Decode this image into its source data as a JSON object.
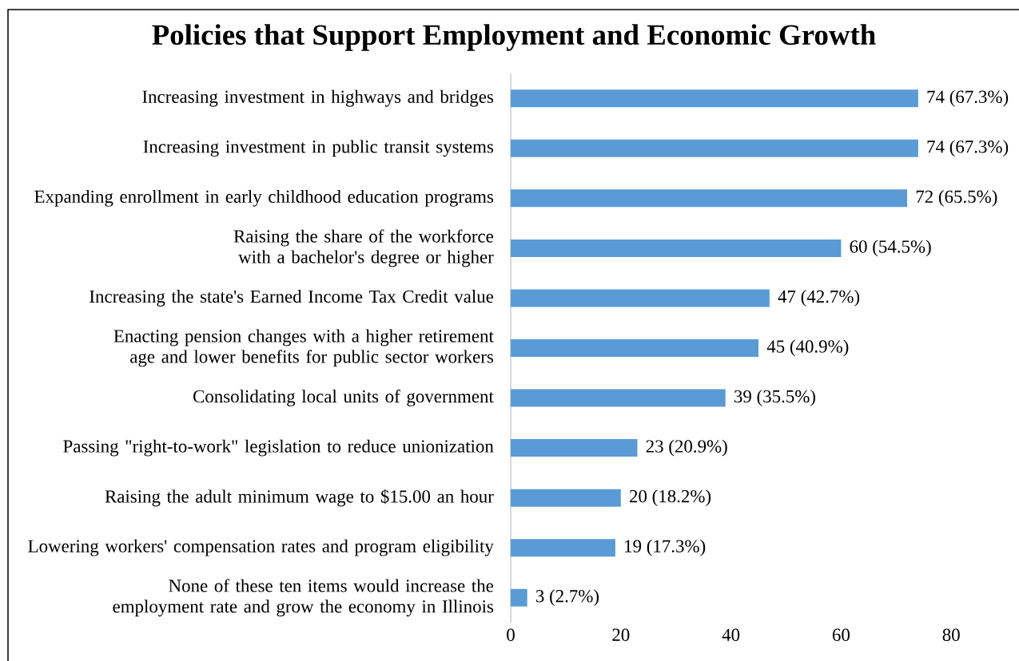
{
  "chart_data": {
    "type": "bar",
    "orientation": "horizontal",
    "title": "Policies that Support Employment and Economic Growth",
    "categories": [
      "Increasing investment in highways and bridges",
      "Increasing investment in public transit systems",
      "Expanding enrollment in early childhood education programs",
      "Raising the share of the workforce with a bachelor's degree or higher",
      "Increasing the state's Earned Income Tax Credit value",
      "Enacting pension changes with a higher retirement age and lower benefits for public sector workers",
      "Consolidating local units of government",
      "Passing \"right-to-work\" legislation to reduce unionization",
      "Raising the adult minimum wage to $15.00 an hour",
      "Lowering workers' compensation rates and program eligibility",
      "None of these ten items would increase the employment rate and grow the economy in Illinois"
    ],
    "values": [
      74,
      74,
      72,
      60,
      47,
      45,
      39,
      23,
      20,
      19,
      3
    ],
    "value_labels": [
      "74 (67.3%)",
      "74 (67.3%)",
      "72 (65.5%)",
      "60 (54.5%)",
      "47 (42.7%)",
      "45 (40.9%)",
      "39 (35.5%)",
      "23 (20.9%)",
      "20 (18.2%)",
      "19 (17.3%)",
      "3 (2.7%)"
    ],
    "color": "#5b9bd5",
    "xlim": [
      0,
      80
    ],
    "xticks": [
      0,
      20,
      40,
      60,
      80
    ],
    "grid": false
  }
}
